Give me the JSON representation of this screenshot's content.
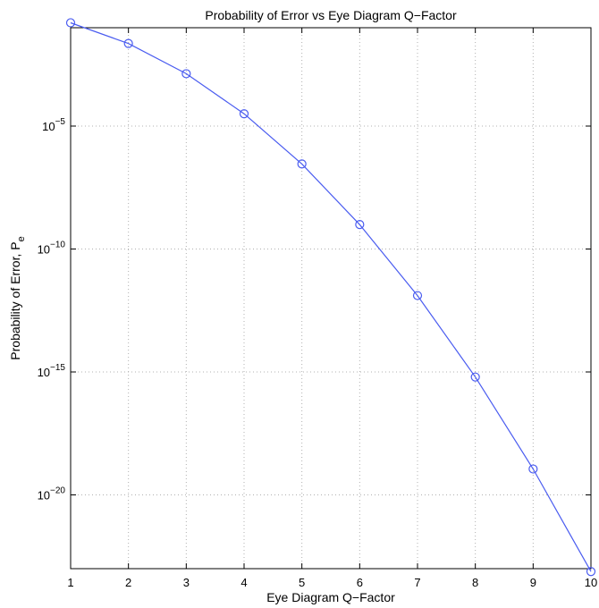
{
  "chart_data": {
    "type": "line",
    "title": "Probability of Error vs Eye Diagram Q−Factor",
    "xlabel": "Eye Diagram Q−Factor",
    "ylabel": "Probability of Error, P",
    "ylabel_subscript": "e",
    "yscale": "log",
    "xlim": [
      1,
      10
    ],
    "ylim": [
      1e-23,
      0.1
    ],
    "grid": true,
    "marker": "circle",
    "line_color": "#4a5cf0",
    "x": [
      1,
      2,
      3,
      4,
      5,
      6,
      7,
      8,
      9,
      10
    ],
    "values": [
      0.159,
      0.0228,
      0.00135,
      3.17e-05,
      2.87e-07,
      9.87e-10,
      1.28e-12,
      6.22e-16,
      1.13e-19,
      7.62e-24
    ],
    "xticks": [
      "1",
      "2",
      "3",
      "4",
      "5",
      "6",
      "7",
      "8",
      "9",
      "10"
    ],
    "yticks": [
      {
        "value": 1e-05,
        "base": "10",
        "exp": "−5"
      },
      {
        "value": 1e-10,
        "base": "10",
        "exp": "−10"
      },
      {
        "value": 1e-15,
        "base": "10",
        "exp": "−15"
      },
      {
        "value": 1e-20,
        "base": "10",
        "exp": "−20"
      }
    ]
  }
}
